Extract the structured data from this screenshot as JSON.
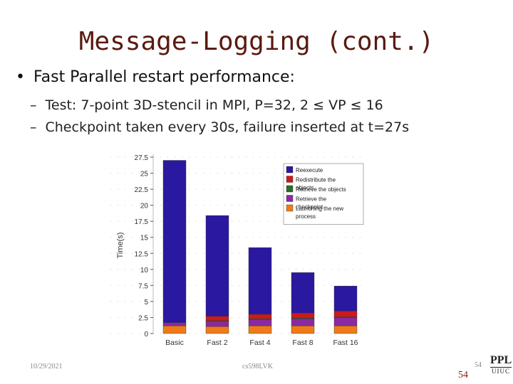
{
  "slide": {
    "title": "Message-Logging (cont.)",
    "bullet": "Fast Parallel restart performance:",
    "sub1": "Test: 7-point 3D-stencil in MPI, P=32, 2 ≤ VP ≤ 16",
    "sub2": "Checkpoint taken every 30s, failure inserted at t=27s",
    "bullet_mark": "•",
    "dash_mark": "–",
    "footer_date": "10/29/2021",
    "footer_course": "cs598LVK",
    "page_number": "54",
    "logo_top": "PPL",
    "logo_bottom": "UIUC"
  },
  "chart_data": {
    "type": "bar",
    "stacked": true,
    "categories": [
      "Basic",
      "Fast 2",
      "Fast 4",
      "Fast 8",
      "Fast 16"
    ],
    "ylabel": "Time(s)",
    "ylim": [
      0,
      27.5
    ],
    "yticks": [
      0,
      2.5,
      5,
      7.5,
      10,
      12.5,
      15,
      17.5,
      20,
      22.5,
      25,
      27.5
    ],
    "ytick_labels": [
      "0",
      "2.5",
      "5",
      "7.5",
      "10",
      "12.5",
      "15",
      "17.5",
      "20",
      "22.5",
      "25",
      "27.5"
    ],
    "grid": true,
    "legend_position": "top-right",
    "series": [
      {
        "name": "Launching the new process",
        "color": "#f07a1a",
        "values": [
          1.2,
          1.1,
          1.2,
          1.2,
          1.2
        ]
      },
      {
        "name": "Retrieve the checkpoint",
        "color": "#8a2aa0",
        "values": [
          0.5,
          0.8,
          1.0,
          1.1,
          1.3
        ]
      },
      {
        "name": "Retrieve the objects",
        "color": "#2a6a2a",
        "values": [
          0.0,
          0.1,
          0.1,
          0.1,
          0.1
        ]
      },
      {
        "name": "Redistribute the objects",
        "color": "#cc1a1a",
        "values": [
          0.0,
          0.7,
          0.7,
          0.8,
          0.9
        ]
      },
      {
        "name": "Reexecute",
        "color": "#2a18a0",
        "values": [
          25.3,
          15.7,
          10.4,
          6.3,
          3.9
        ]
      }
    ]
  }
}
